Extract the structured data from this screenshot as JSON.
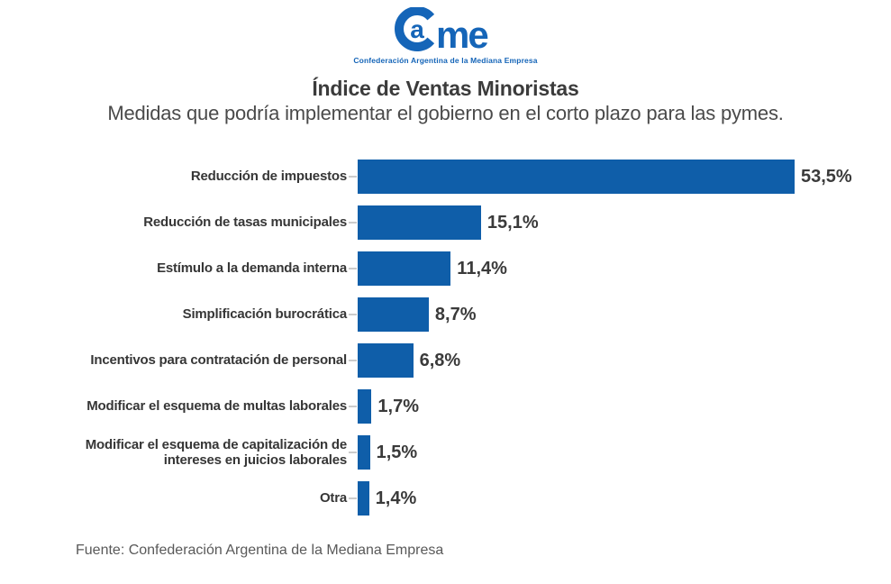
{
  "logo": {
    "letter_a": "a",
    "letters_me": "me",
    "tagline": "Confederación Argentina de la Mediana Empresa",
    "color": "#1565b8"
  },
  "header": {
    "title": "Índice de Ventas Minoristas",
    "subtitle": "Medidas que podría implementar el gobierno en el corto plazo para las pymes."
  },
  "chart_data": {
    "type": "bar",
    "orientation": "horizontal",
    "title": "Índice de Ventas Minoristas",
    "subtitle": "Medidas que podría implementar el gobierno en el corto plazo para las pymes.",
    "categories": [
      "Reducción de impuestos",
      "Reducción de tasas municipales",
      "Estímulo a la demanda interna",
      "Simplificación burocrática",
      "Incentivos para contratación de personal",
      "Modificar el esquema de multas laborales",
      "Modificar el esquema de capitalización de intereses en juicios laborales",
      "Otra"
    ],
    "values": [
      53.5,
      15.1,
      11.4,
      8.7,
      6.8,
      1.7,
      1.5,
      1.4
    ],
    "value_labels": [
      "53,5%",
      "15,1%",
      "11,4%",
      "8,7%",
      "6,8%",
      "1,7%",
      "1,5%",
      "1,4%"
    ],
    "unit": "%",
    "xlim": [
      0,
      55
    ],
    "grid": false,
    "legend": "none",
    "bar_color": "#0f5ea9",
    "tick_color": "#cccccc"
  },
  "footer": {
    "source": "Fuente: Confederación Argentina de la Mediana Empresa"
  }
}
